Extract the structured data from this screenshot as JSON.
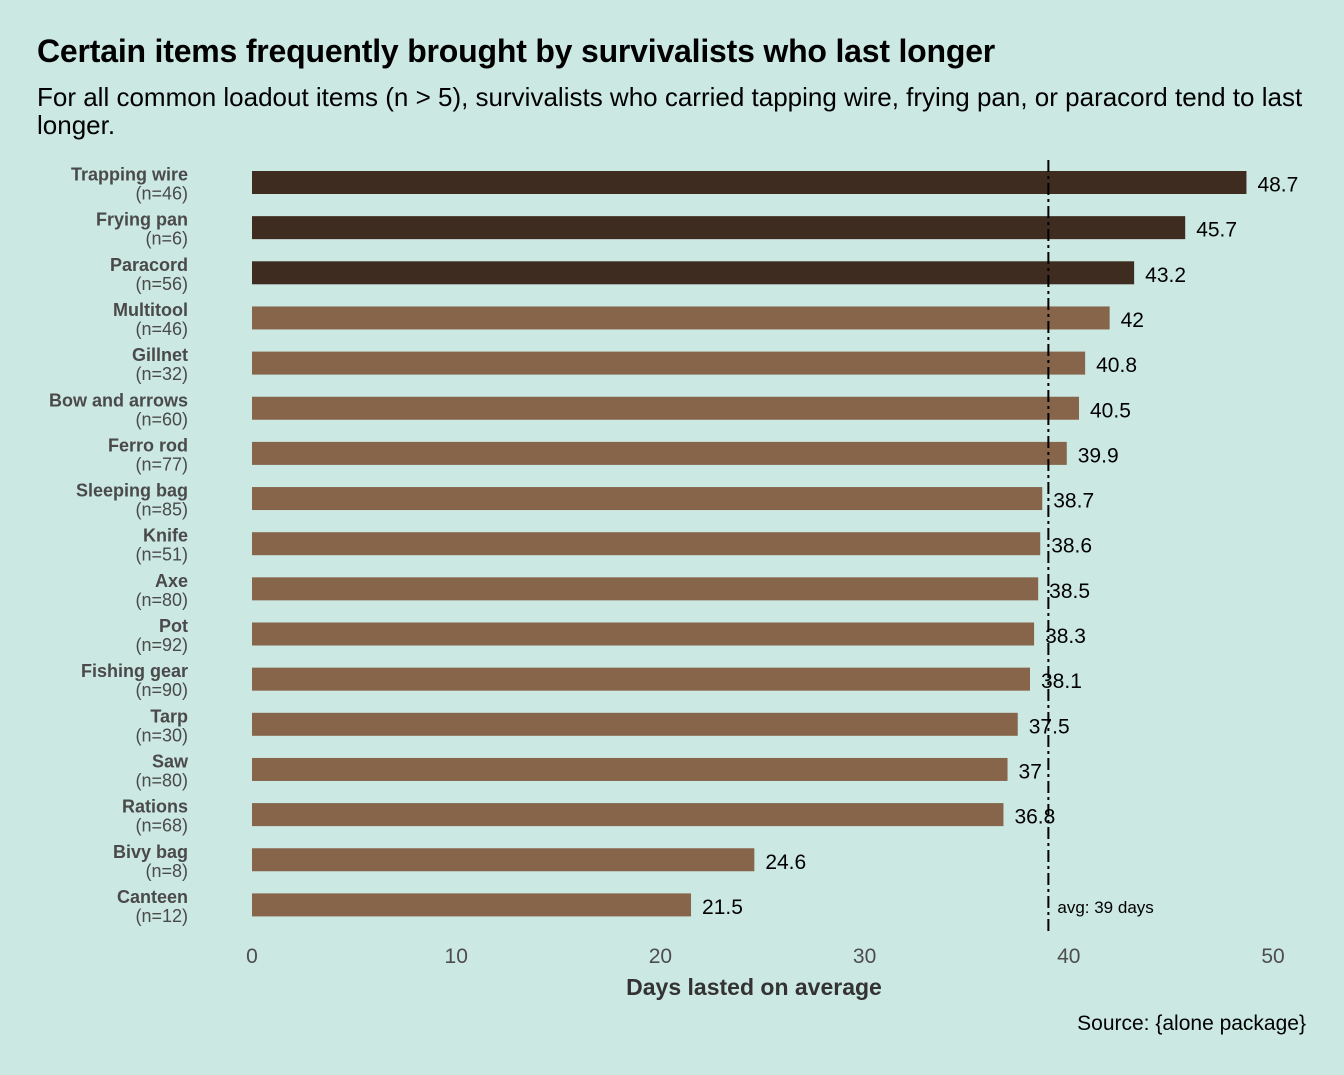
{
  "title": "Certain items frequently brought by survivalists who last longer",
  "subtitle": "For all common loadout items (n > 5), survivalists who carried tapping wire, frying pan, or paracord tend to last longer.",
  "source": "Source: {alone package}",
  "colors": {
    "background": "#cce8e2",
    "highlight_bar": "#3e2c21",
    "regular_bar": "#86654a",
    "label_text": "#4a4a4a",
    "reference_line": "#000000"
  },
  "chart_data": {
    "type": "bar",
    "orientation": "horizontal",
    "title": "Certain items frequently brought by survivalists who last longer",
    "subtitle": "For all common loadout items (n > 5), survivalists who carried tapping wire, frying pan, or paracord tend to last longer.",
    "xlabel": "Days lasted on average",
    "ylabel": "",
    "xlim": [
      0,
      50
    ],
    "xticks": [
      0,
      10,
      20,
      30,
      40,
      50
    ],
    "grid": false,
    "legend": "none",
    "categories": [
      {
        "item": "Trapping wire",
        "n": "(n=46)",
        "value": 48.7,
        "label": "48.7",
        "highlight": true
      },
      {
        "item": "Frying pan",
        "n": "(n=6)",
        "value": 45.7,
        "label": "45.7",
        "highlight": true
      },
      {
        "item": "Paracord",
        "n": "(n=56)",
        "value": 43.2,
        "label": "43.2",
        "highlight": true
      },
      {
        "item": "Multitool",
        "n": "(n=46)",
        "value": 42,
        "label": "42",
        "highlight": false
      },
      {
        "item": "Gillnet",
        "n": "(n=32)",
        "value": 40.8,
        "label": "40.8",
        "highlight": false
      },
      {
        "item": "Bow and arrows",
        "n": "(n=60)",
        "value": 40.5,
        "label": "40.5",
        "highlight": false
      },
      {
        "item": "Ferro rod",
        "n": "(n=77)",
        "value": 39.9,
        "label": "39.9",
        "highlight": false
      },
      {
        "item": "Sleeping bag",
        "n": "(n=85)",
        "value": 38.7,
        "label": "38.7",
        "highlight": false
      },
      {
        "item": "Knife",
        "n": "(n=51)",
        "value": 38.6,
        "label": "38.6",
        "highlight": false
      },
      {
        "item": "Axe",
        "n": "(n=80)",
        "value": 38.5,
        "label": "38.5",
        "highlight": false
      },
      {
        "item": "Pot",
        "n": "(n=92)",
        "value": 38.3,
        "label": "38.3",
        "highlight": false
      },
      {
        "item": "Fishing gear",
        "n": "(n=90)",
        "value": 38.1,
        "label": "38.1",
        "highlight": false
      },
      {
        "item": "Tarp",
        "n": "(n=30)",
        "value": 37.5,
        "label": "37.5",
        "highlight": false
      },
      {
        "item": "Saw",
        "n": "(n=80)",
        "value": 37,
        "label": "37",
        "highlight": false
      },
      {
        "item": "Rations",
        "n": "(n=68)",
        "value": 36.8,
        "label": "36.8",
        "highlight": false
      },
      {
        "item": "Bivy bag",
        "n": "(n=8)",
        "value": 24.6,
        "label": "24.6",
        "highlight": false
      },
      {
        "item": "Canteen",
        "n": "(n=12)",
        "value": 21.5,
        "label": "21.5",
        "highlight": false
      }
    ],
    "reference_line": {
      "value": 39,
      "label": "avg: 39 days",
      "style": "dashed"
    }
  }
}
